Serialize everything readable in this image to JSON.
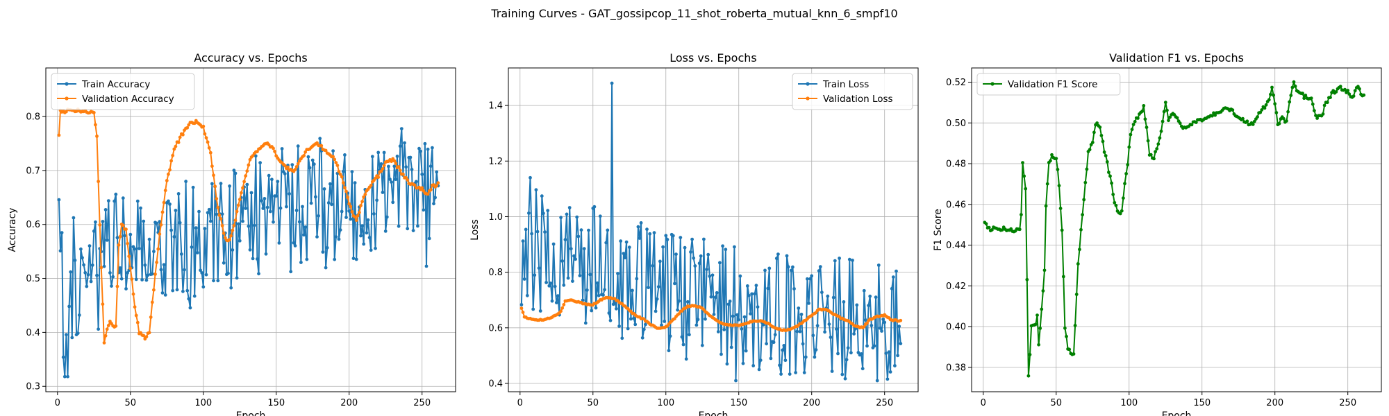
{
  "figure": {
    "title": "Training Curves - GAT_gossipcop_11_shot_roberta_mutual_knn_6_smpf10"
  },
  "colors": {
    "train": "#1f77b4",
    "validation": "#ff7f0e",
    "f1": "#008000",
    "grid": "#b0b0b0"
  },
  "chart_data": [
    {
      "type": "line",
      "title": "Accuracy vs. Epochs",
      "xlabel": "Epoch",
      "ylabel": "Accuracy",
      "xlim": [
        -8,
        273
      ],
      "ylim": [
        0.29,
        0.89
      ],
      "xticks": [
        0,
        50,
        100,
        150,
        200,
        250
      ],
      "yticks": [
        0.3,
        0.4,
        0.5,
        0.6,
        0.7,
        0.8
      ],
      "ytick_decimals": 1,
      "grid": true,
      "legend_position": "top-left",
      "series": [
        {
          "name": "Train Accuracy",
          "color_key": "train",
          "kind": "keypoints",
          "seed": 11,
          "noise": 0.075,
          "values_min": 0.318,
          "values_max": 0.864,
          "keypoints": [
            [
              1,
              0.545
            ],
            [
              3,
              0.5
            ],
            [
              5,
              0.41
            ],
            [
              7,
              0.318
            ],
            [
              10,
              0.5
            ],
            [
              15,
              0.47
            ],
            [
              20,
              0.545
            ],
            [
              30,
              0.5
            ],
            [
              40,
              0.55
            ],
            [
              50,
              0.52
            ],
            [
              60,
              0.56
            ],
            [
              80,
              0.56
            ],
            [
              100,
              0.56
            ],
            [
              120,
              0.6
            ],
            [
              140,
              0.62
            ],
            [
              160,
              0.63
            ],
            [
              180,
              0.64
            ],
            [
              200,
              0.62
            ],
            [
              220,
              0.66
            ],
            [
              240,
              0.66
            ],
            [
              261,
              0.62
            ]
          ]
        },
        {
          "name": "Validation Accuracy",
          "color_key": "validation",
          "kind": "keypoints",
          "seed": 0,
          "noise": 0.003,
          "keypoints": [
            [
              1,
              0.765
            ],
            [
              2,
              0.81
            ],
            [
              5,
              0.81
            ],
            [
              10,
              0.812
            ],
            [
              20,
              0.81
            ],
            [
              25,
              0.805
            ],
            [
              27,
              0.765
            ],
            [
              28,
              0.68
            ],
            [
              30,
              0.52
            ],
            [
              32,
              0.38
            ],
            [
              34,
              0.405
            ],
            [
              36,
              0.42
            ],
            [
              40,
              0.41
            ],
            [
              42,
              0.56
            ],
            [
              44,
              0.6
            ],
            [
              47,
              0.59
            ],
            [
              50,
              0.52
            ],
            [
              53,
              0.45
            ],
            [
              56,
              0.4
            ],
            [
              60,
              0.39
            ],
            [
              63,
              0.4
            ],
            [
              66,
              0.48
            ],
            [
              70,
              0.58
            ],
            [
              75,
              0.68
            ],
            [
              80,
              0.74
            ],
            [
              85,
              0.765
            ],
            [
              90,
              0.785
            ],
            [
              95,
              0.79
            ],
            [
              100,
              0.78
            ],
            [
              105,
              0.73
            ],
            [
              110,
              0.63
            ],
            [
              115,
              0.575
            ],
            [
              118,
              0.57
            ],
            [
              122,
              0.61
            ],
            [
              127,
              0.67
            ],
            [
              132,
              0.72
            ],
            [
              138,
              0.74
            ],
            [
              143,
              0.75
            ],
            [
              148,
              0.74
            ],
            [
              152,
              0.72
            ],
            [
              157,
              0.705
            ],
            [
              162,
              0.7
            ],
            [
              167,
              0.72
            ],
            [
              172,
              0.74
            ],
            [
              177,
              0.75
            ],
            [
              183,
              0.74
            ],
            [
              190,
              0.72
            ],
            [
              196,
              0.68
            ],
            [
              200,
              0.64
            ],
            [
              205,
              0.605
            ],
            [
              210,
              0.65
            ],
            [
              215,
              0.675
            ],
            [
              220,
              0.69
            ],
            [
              225,
              0.715
            ],
            [
              230,
              0.72
            ],
            [
              235,
              0.7
            ],
            [
              240,
              0.68
            ],
            [
              245,
              0.67
            ],
            [
              250,
              0.665
            ],
            [
              253,
              0.655
            ],
            [
              257,
              0.67
            ],
            [
              261,
              0.675
            ]
          ]
        }
      ]
    },
    {
      "type": "line",
      "title": "Loss vs. Epochs",
      "xlabel": "Epoch",
      "ylabel": "Loss",
      "xlim": [
        -8,
        273
      ],
      "ylim": [
        0.37,
        1.535
      ],
      "xticks": [
        0,
        50,
        100,
        150,
        200,
        250
      ],
      "yticks": [
        0.4,
        0.6,
        0.8,
        1.0,
        1.2,
        1.4
      ],
      "ytick_decimals": 1,
      "grid": true,
      "legend_position": "top-right",
      "series": [
        {
          "name": "Train Loss",
          "color_key": "train",
          "kind": "keypoints",
          "seed": 23,
          "noise": 0.14,
          "values_min": 0.41,
          "values_max": 1.48,
          "spikes": [
            [
              63,
              1.48
            ],
            [
              148,
              0.41
            ],
            [
              7,
              1.14
            ]
          ],
          "keypoints": [
            [
              1,
              0.9
            ],
            [
              10,
              0.88
            ],
            [
              20,
              0.86
            ],
            [
              40,
              0.84
            ],
            [
              60,
              0.8
            ],
            [
              80,
              0.76
            ],
            [
              100,
              0.72
            ],
            [
              120,
              0.7
            ],
            [
              140,
              0.69
            ],
            [
              160,
              0.67
            ],
            [
              180,
              0.65
            ],
            [
              200,
              0.64
            ],
            [
              220,
              0.63
            ],
            [
              240,
              0.62
            ],
            [
              261,
              0.6
            ]
          ]
        },
        {
          "name": "Validation Loss",
          "color_key": "validation",
          "kind": "keypoints",
          "seed": 0,
          "noise": 0.002,
          "keypoints": [
            [
              1,
              0.67
            ],
            [
              3,
              0.64
            ],
            [
              8,
              0.63
            ],
            [
              15,
              0.628
            ],
            [
              20,
              0.635
            ],
            [
              25,
              0.645
            ],
            [
              28,
              0.66
            ],
            [
              31,
              0.695
            ],
            [
              35,
              0.7
            ],
            [
              40,
              0.693
            ],
            [
              45,
              0.685
            ],
            [
              50,
              0.683
            ],
            [
              55,
              0.7
            ],
            [
              60,
              0.71
            ],
            [
              65,
              0.703
            ],
            [
              70,
              0.685
            ],
            [
              75,
              0.662
            ],
            [
              80,
              0.642
            ],
            [
              85,
              0.63
            ],
            [
              90,
              0.61
            ],
            [
              95,
              0.597
            ],
            [
              100,
              0.603
            ],
            [
              105,
              0.628
            ],
            [
              110,
              0.658
            ],
            [
              115,
              0.678
            ],
            [
              120,
              0.68
            ],
            [
              125,
              0.67
            ],
            [
              130,
              0.645
            ],
            [
              135,
              0.625
            ],
            [
              140,
              0.613
            ],
            [
              145,
              0.608
            ],
            [
              150,
              0.61
            ],
            [
              155,
              0.615
            ],
            [
              160,
              0.625
            ],
            [
              165,
              0.625
            ],
            [
              170,
              0.615
            ],
            [
              175,
              0.6
            ],
            [
              180,
              0.59
            ],
            [
              185,
              0.595
            ],
            [
              190,
              0.605
            ],
            [
              195,
              0.625
            ],
            [
              200,
              0.645
            ],
            [
              205,
              0.665
            ],
            [
              210,
              0.665
            ],
            [
              215,
              0.65
            ],
            [
              220,
              0.635
            ],
            [
              225,
              0.625
            ],
            [
              230,
              0.605
            ],
            [
              235,
              0.6
            ],
            [
              240,
              0.63
            ],
            [
              245,
              0.64
            ],
            [
              250,
              0.645
            ],
            [
              255,
              0.628
            ],
            [
              261,
              0.625
            ]
          ]
        }
      ]
    },
    {
      "type": "line",
      "title": "Validation F1 vs. Epochs",
      "xlabel": "Epoch",
      "ylabel": "F1 Score",
      "xlim": [
        -8,
        273
      ],
      "ylim": [
        0.368,
        0.527
      ],
      "xticks": [
        0,
        50,
        100,
        150,
        200,
        250
      ],
      "yticks": [
        0.38,
        0.4,
        0.42,
        0.44,
        0.46,
        0.48,
        0.5,
        0.52
      ],
      "ytick_decimals": 2,
      "grid": true,
      "legend_position": "top-left",
      "series": [
        {
          "name": "Validation F1 Score",
          "color_key": "f1",
          "kind": "keypoints",
          "seed": 0,
          "noise": 0.001,
          "keypoints": [
            [
              1,
              0.451
            ],
            [
              3,
              0.449
            ],
            [
              5,
              0.448
            ],
            [
              15,
              0.448
            ],
            [
              20,
              0.4475
            ],
            [
              25,
              0.447
            ],
            [
              26,
              0.455
            ],
            [
              27,
              0.481
            ],
            [
              28,
              0.474
            ],
            [
              29,
              0.468
            ],
            [
              30,
              0.423
            ],
            [
              31,
              0.375
            ],
            [
              32,
              0.386
            ],
            [
              33,
              0.4
            ],
            [
              36,
              0.401
            ],
            [
              37,
              0.406
            ],
            [
              38,
              0.392
            ],
            [
              40,
              0.408
            ],
            [
              42,
              0.427
            ],
            [
              43,
              0.46
            ],
            [
              45,
              0.48
            ],
            [
              47,
              0.484
            ],
            [
              50,
              0.483
            ],
            [
              52,
              0.47
            ],
            [
              54,
              0.448
            ],
            [
              56,
              0.4
            ],
            [
              58,
              0.389
            ],
            [
              62,
              0.386
            ],
            [
              65,
              0.43
            ],
            [
              68,
              0.455
            ],
            [
              70,
              0.47
            ],
            [
              72,
              0.485
            ],
            [
              75,
              0.49
            ],
            [
              77,
              0.5
            ],
            [
              80,
              0.498
            ],
            [
              82,
              0.49
            ],
            [
              85,
              0.48
            ],
            [
              88,
              0.47
            ],
            [
              90,
              0.461
            ],
            [
              92,
              0.456
            ],
            [
              95,
              0.456
            ],
            [
              97,
              0.47
            ],
            [
              99,
              0.48
            ],
            [
              101,
              0.495
            ],
            [
              104,
              0.5
            ],
            [
              106,
              0.503
            ],
            [
              108,
              0.505
            ],
            [
              110,
              0.508
            ],
            [
              112,
              0.497
            ],
            [
              114,
              0.485
            ],
            [
              117,
              0.483
            ],
            [
              120,
              0.49
            ],
            [
              123,
              0.5
            ],
            [
              125,
              0.51
            ],
            [
              127,
              0.502
            ],
            [
              130,
              0.505
            ],
            [
              133,
              0.502
            ],
            [
              136,
              0.498
            ],
            [
              140,
              0.498
            ],
            [
              145,
              0.5
            ],
            [
              150,
              0.502
            ],
            [
              155,
              0.503
            ],
            [
              160,
              0.505
            ],
            [
              165,
              0.507
            ],
            [
              170,
              0.506
            ],
            [
              175,
              0.503
            ],
            [
              180,
              0.5
            ],
            [
              185,
              0.5
            ],
            [
              190,
              0.505
            ],
            [
              195,
              0.51
            ],
            [
              198,
              0.517
            ],
            [
              200,
              0.51
            ],
            [
              202,
              0.5
            ],
            [
              205,
              0.502
            ],
            [
              208,
              0.5
            ],
            [
              210,
              0.51
            ],
            [
              213,
              0.52
            ],
            [
              216,
              0.515
            ],
            [
              220,
              0.513
            ],
            [
              225,
              0.512
            ],
            [
              228,
              0.503
            ],
            [
              232,
              0.503
            ],
            [
              235,
              0.51
            ],
            [
              240,
              0.515
            ],
            [
              245,
              0.517
            ],
            [
              250,
              0.515
            ],
            [
              253,
              0.512
            ],
            [
              256,
              0.518
            ],
            [
              261,
              0.513
            ]
          ]
        }
      ]
    }
  ]
}
